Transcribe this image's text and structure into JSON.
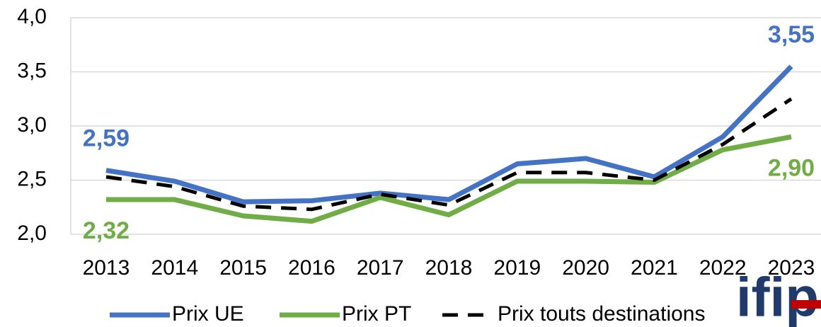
{
  "chart_data": {
    "type": "line",
    "categories": [
      "2013",
      "2014",
      "2015",
      "2016",
      "2017",
      "2018",
      "2019",
      "2020",
      "2021",
      "2022",
      "2023"
    ],
    "series": [
      {
        "name": "Prix UE",
        "color": "#4472c4",
        "values": [
          2.59,
          2.49,
          2.3,
          2.31,
          2.38,
          2.32,
          2.65,
          2.7,
          2.53,
          2.9,
          3.55
        ],
        "value_labels": [
          "2,59",
          null,
          null,
          null,
          null,
          null,
          null,
          null,
          null,
          null,
          "3,55"
        ]
      },
      {
        "name": "Prix PT",
        "color": "#70ad47",
        "values": [
          2.32,
          2.32,
          2.17,
          2.12,
          2.34,
          2.18,
          2.49,
          2.49,
          2.48,
          2.78,
          2.9
        ],
        "value_labels": [
          "2,32",
          null,
          null,
          null,
          null,
          null,
          null,
          null,
          null,
          null,
          "2,90"
        ]
      },
      {
        "name": "Prix touts destinations",
        "color": "#000000",
        "dashed": true,
        "values": [
          2.53,
          2.44,
          2.26,
          2.23,
          2.37,
          2.27,
          2.57,
          2.57,
          2.5,
          2.83,
          3.25
        ]
      }
    ],
    "ylim": [
      2,
      4
    ],
    "yticks": [
      {
        "value": 2,
        "label": "2,0"
      },
      {
        "value": 2.5,
        "label": "2,5"
      },
      {
        "value": 3,
        "label": "3,0"
      },
      {
        "value": 3.5,
        "label": "3,5"
      },
      {
        "value": 4,
        "label": "4,0"
      }
    ],
    "grid": true,
    "legend": "bottom"
  },
  "logo": "ifip"
}
